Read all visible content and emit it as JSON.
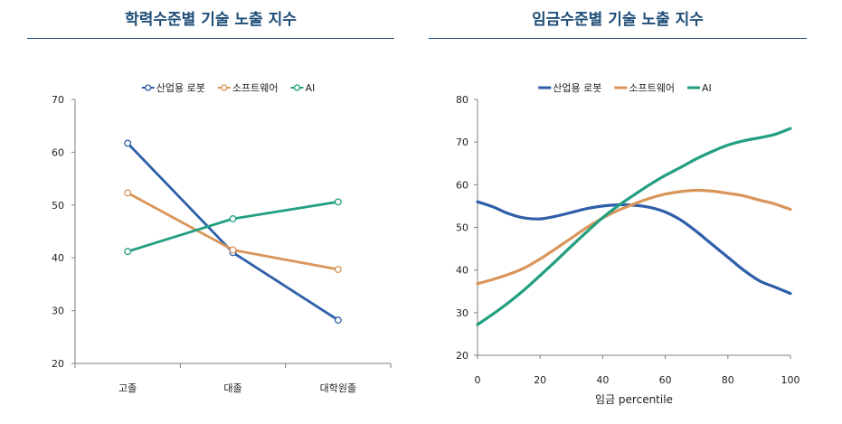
{
  "chart_data": [
    {
      "type": "line",
      "title": "학력수준별 기술 노출 지수",
      "categories": [
        "고졸",
        "대졸",
        "대학원졸"
      ],
      "xlabel": "",
      "ylabel": "",
      "ylim": [
        20,
        70
      ],
      "yticks": [
        "20",
        "30",
        "40",
        "50",
        "60",
        "70"
      ],
      "legend_position": "top-center",
      "grid": false,
      "markers": true,
      "series": [
        {
          "name": "산업용 로봇",
          "color": "#2e5fa8",
          "values": [
            61.7,
            41.0,
            28.2
          ]
        },
        {
          "name": "소프트웨어",
          "color": "#d9955a",
          "values": [
            52.3,
            41.5,
            37.8
          ]
        },
        {
          "name": "AI",
          "color": "#229e80",
          "values": [
            41.2,
            47.4,
            50.6
          ]
        }
      ]
    },
    {
      "type": "line",
      "title": "임금수준별 기술 노출 지수",
      "x": [
        0,
        5,
        10,
        15,
        20,
        25,
        30,
        35,
        40,
        45,
        50,
        55,
        60,
        65,
        70,
        75,
        80,
        85,
        90,
        95,
        100
      ],
      "xticks": [
        "0",
        "20",
        "40",
        "60",
        "80",
        "100"
      ],
      "xlabel": "임금 percentile",
      "ylabel": "",
      "xlim": [
        0,
        100
      ],
      "ylim": [
        20,
        80
      ],
      "yticks": [
        "20",
        "30",
        "40",
        "50",
        "60",
        "70",
        "80"
      ],
      "legend_position": "top-center",
      "grid": false,
      "markers": false,
      "series": [
        {
          "name": "산업용 로봇",
          "color": "#2e5fa8",
          "values": [
            56.0,
            54.8,
            53.2,
            52.2,
            52.0,
            52.6,
            53.5,
            54.4,
            55.0,
            55.3,
            55.2,
            54.7,
            53.6,
            51.7,
            49.0,
            46.0,
            43.0,
            40.0,
            37.5,
            36.0,
            34.5
          ]
        },
        {
          "name": "소프트웨어",
          "color": "#d9955a",
          "values": [
            36.8,
            37.8,
            39.0,
            40.5,
            42.6,
            45.0,
            47.5,
            50.0,
            52.2,
            54.0,
            55.5,
            56.8,
            57.8,
            58.4,
            58.7,
            58.5,
            58.0,
            57.4,
            56.4,
            55.5,
            54.2
          ]
        },
        {
          "name": "AI",
          "color": "#229e80",
          "values": [
            27.2,
            29.7,
            32.4,
            35.4,
            38.7,
            42.1,
            45.6,
            49.0,
            52.3,
            55.1,
            57.6,
            60.0,
            62.2,
            64.1,
            66.1,
            67.8,
            69.3,
            70.3,
            71.0,
            71.8,
            73.2
          ]
        }
      ]
    }
  ]
}
